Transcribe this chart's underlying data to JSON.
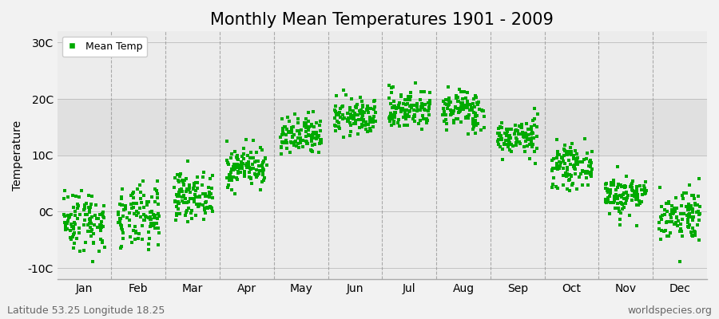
{
  "title": "Monthly Mean Temperatures 1901 - 2009",
  "ylabel": "Temperature",
  "footer_left": "Latitude 53.25 Longitude 18.25",
  "footer_right": "worldspecies.org",
  "legend_label": "Mean Temp",
  "dot_color": "#00aa00",
  "ylim": [
    -12,
    32
  ],
  "yticks": [
    -10,
    0,
    10,
    20,
    30
  ],
  "ytick_labels": [
    "-10C",
    "0C",
    "10C",
    "20C",
    "30C"
  ],
  "months": [
    "Jan",
    "Feb",
    "Mar",
    "Apr",
    "May",
    "Jun",
    "Jul",
    "Aug",
    "Sep",
    "Oct",
    "Nov",
    "Dec"
  ],
  "mean_temps": [
    -1.5,
    -1.2,
    2.8,
    8.0,
    13.2,
    16.8,
    18.2,
    18.0,
    13.2,
    8.0,
    3.0,
    -0.5
  ],
  "std_temps": [
    2.8,
    2.8,
    2.0,
    1.8,
    1.8,
    1.6,
    1.8,
    1.8,
    1.6,
    1.8,
    1.8,
    2.4
  ],
  "n_years": 109,
  "seed": 42,
  "bg_color": "#f2f2f2",
  "plot_bg_light": "#ececec",
  "plot_bg_dark": "#e0e0e0",
  "title_fontsize": 15,
  "axis_fontsize": 10,
  "footer_fontsize": 9,
  "legend_fontsize": 9,
  "marker_size": 3.5
}
